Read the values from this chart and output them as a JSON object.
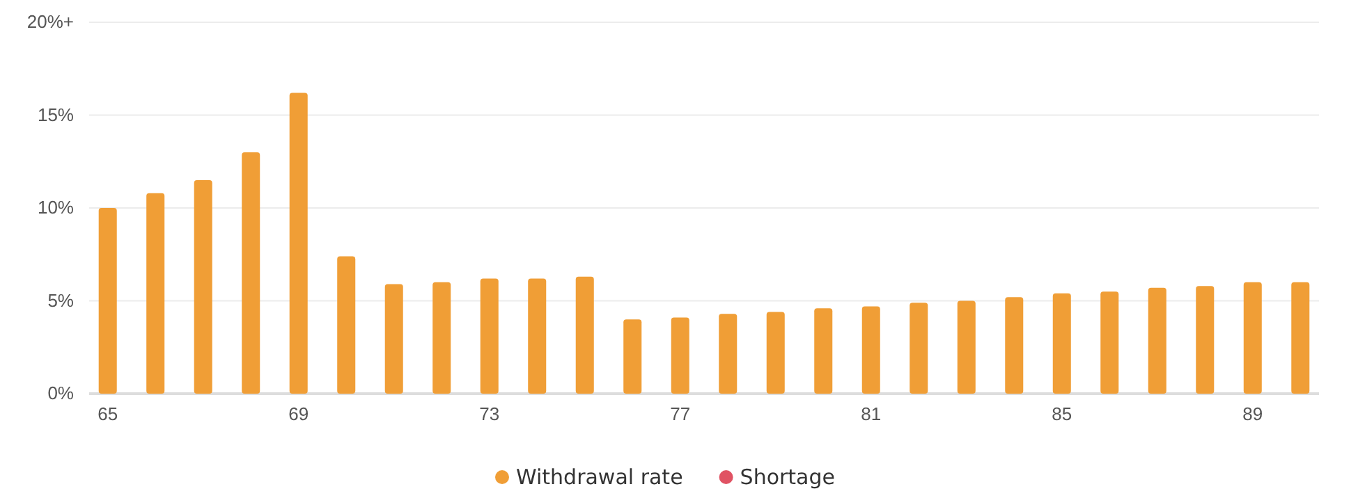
{
  "chart_data": {
    "type": "bar",
    "categories": [
      "65",
      null,
      null,
      null,
      "69",
      null,
      null,
      null,
      "73",
      null,
      null,
      null,
      "77",
      null,
      null,
      null,
      "81",
      null,
      null,
      null,
      "85",
      null,
      null,
      null,
      "89",
      null
    ],
    "series": [
      {
        "name": "Withdrawal rate",
        "color": "#f09e36",
        "values": [
          10.0,
          10.8,
          11.5,
          13.0,
          16.2,
          7.4,
          5.9,
          6.0,
          6.2,
          6.2,
          6.3,
          4.0,
          4.1,
          4.3,
          4.4,
          4.6,
          4.7,
          4.9,
          5.0,
          5.2,
          5.4,
          5.5,
          5.7,
          5.8,
          6.0,
          6.0
        ]
      },
      {
        "name": "Shortage",
        "color": "#e05263",
        "values": [
          null,
          null,
          null,
          null,
          null,
          null,
          null,
          null,
          null,
          null,
          null,
          null,
          null,
          null,
          null,
          null,
          null,
          null,
          null,
          null,
          null,
          null,
          null,
          null,
          null,
          null
        ]
      }
    ],
    "ylim": [
      0,
      20
    ],
    "yticks": [
      {
        "value": 0,
        "label": "0%"
      },
      {
        "value": 5,
        "label": "5%"
      },
      {
        "value": 10,
        "label": "10%"
      },
      {
        "value": 15,
        "label": "15%"
      },
      {
        "value": 20,
        "label": "20%+"
      }
    ],
    "grid": "y",
    "legend": "bottom"
  }
}
